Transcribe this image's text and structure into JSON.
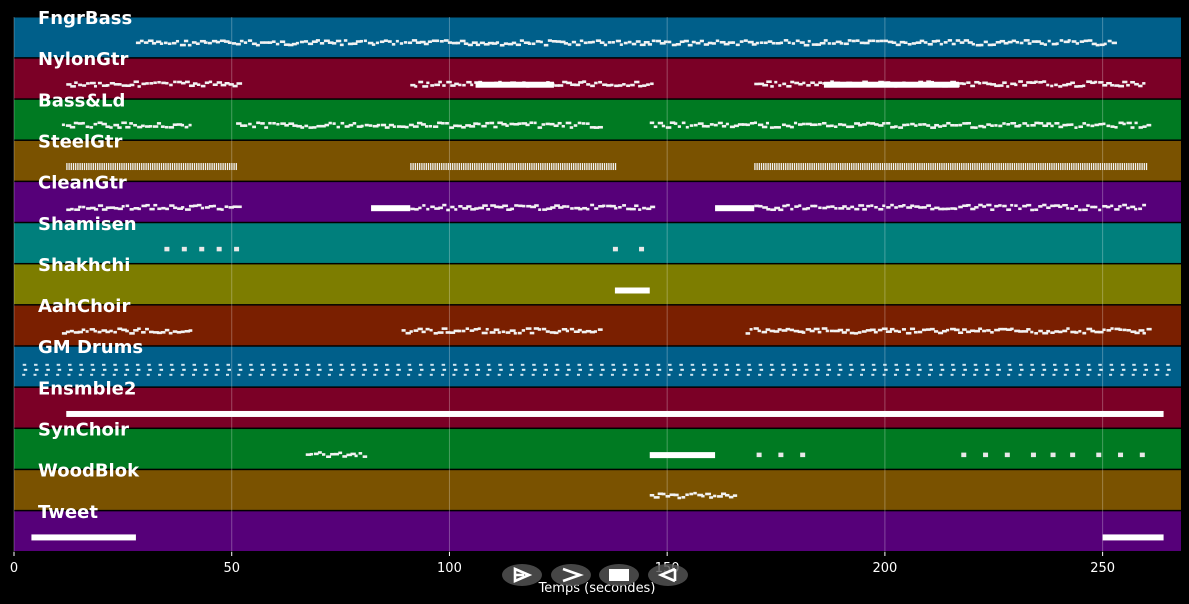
{
  "chart_data": {
    "type": "piano-roll",
    "xlabel": "Temps (secondes)",
    "xlim": [
      0,
      268
    ],
    "xticks": [
      0,
      50,
      100,
      150,
      200,
      250
    ],
    "grid": true,
    "tracks": [
      {
        "name": "FngrBass",
        "color": "#005f8a",
        "segments": [
          {
            "start": 28,
            "end": 253,
            "style": "scatter"
          }
        ]
      },
      {
        "name": "NylonGtr",
        "color": "#7b0026",
        "segments": [
          {
            "start": 12,
            "end": 52,
            "style": "scatter"
          },
          {
            "start": 91,
            "end": 147,
            "style": "scatter"
          },
          {
            "start": 106,
            "end": 124,
            "style": "block"
          },
          {
            "start": 170,
            "end": 260,
            "style": "scatter"
          },
          {
            "start": 186,
            "end": 217,
            "style": "block"
          }
        ]
      },
      {
        "name": "Bass&Ld",
        "color": "#007a22",
        "segments": [
          {
            "start": 11,
            "end": 41,
            "style": "scatter"
          },
          {
            "start": 51,
            "end": 135,
            "style": "scatter"
          },
          {
            "start": 146,
            "end": 261,
            "style": "scatter"
          }
        ]
      },
      {
        "name": "SteelGtr",
        "color": "#7a5200",
        "segments": [
          {
            "start": 12,
            "end": 51,
            "style": "dense"
          },
          {
            "start": 91,
            "end": 138,
            "style": "dense"
          },
          {
            "start": 170,
            "end": 260,
            "style": "dense"
          }
        ]
      },
      {
        "name": "CleanGtr",
        "color": "#560079",
        "segments": [
          {
            "start": 12,
            "end": 52,
            "style": "scatter"
          },
          {
            "start": 82,
            "end": 91,
            "style": "block"
          },
          {
            "start": 91,
            "end": 147,
            "style": "scatter"
          },
          {
            "start": 161,
            "end": 170,
            "style": "block"
          },
          {
            "start": 170,
            "end": 260,
            "style": "scatter"
          }
        ]
      },
      {
        "name": "Shamisen",
        "color": "#007f7c",
        "segments": [
          {
            "start": 35,
            "end": 51,
            "style": "sparse"
          },
          {
            "start": 138,
            "end": 144,
            "style": "sparse"
          }
        ]
      },
      {
        "name": "Shakhchi",
        "color": "#7d7d00",
        "segments": [
          {
            "start": 138,
            "end": 146,
            "style": "block"
          }
        ]
      },
      {
        "name": "AahChoir",
        "color": "#7a1f00",
        "segments": [
          {
            "start": 11,
            "end": 41,
            "style": "scatter"
          },
          {
            "start": 89,
            "end": 135,
            "style": "scatter"
          },
          {
            "start": 168,
            "end": 261,
            "style": "scatter"
          }
        ]
      },
      {
        "name": "GM Drums",
        "color": "#005f8a",
        "segments": [
          {
            "start": 2,
            "end": 266,
            "style": "drums"
          }
        ]
      },
      {
        "name": "Ensmble2",
        "color": "#7b0026",
        "segments": [
          {
            "start": 12,
            "end": 264,
            "style": "block"
          }
        ]
      },
      {
        "name": "SynChoir",
        "color": "#007a22",
        "segments": [
          {
            "start": 67,
            "end": 81,
            "style": "scatter"
          },
          {
            "start": 146,
            "end": 161,
            "style": "block"
          },
          {
            "start": 171,
            "end": 181,
            "style": "sparse"
          },
          {
            "start": 218,
            "end": 228,
            "style": "sparse"
          },
          {
            "start": 234,
            "end": 243,
            "style": "sparse"
          },
          {
            "start": 249,
            "end": 259,
            "style": "sparse"
          }
        ]
      },
      {
        "name": "WoodBlok",
        "color": "#7a5200",
        "segments": [
          {
            "start": 146,
            "end": 166,
            "style": "scatter"
          }
        ]
      },
      {
        "name": "Tweet",
        "color": "#560079",
        "segments": [
          {
            "start": 4,
            "end": 28,
            "style": "block"
          },
          {
            "start": 250,
            "end": 264,
            "style": "block"
          }
        ]
      }
    ]
  },
  "controls": [
    {
      "name": "play-icon",
      "label": "play"
    },
    {
      "name": "forward-icon",
      "label": "forward"
    },
    {
      "name": "stop-icon",
      "label": "stop"
    },
    {
      "name": "rewind-icon",
      "label": "rewind"
    }
  ]
}
